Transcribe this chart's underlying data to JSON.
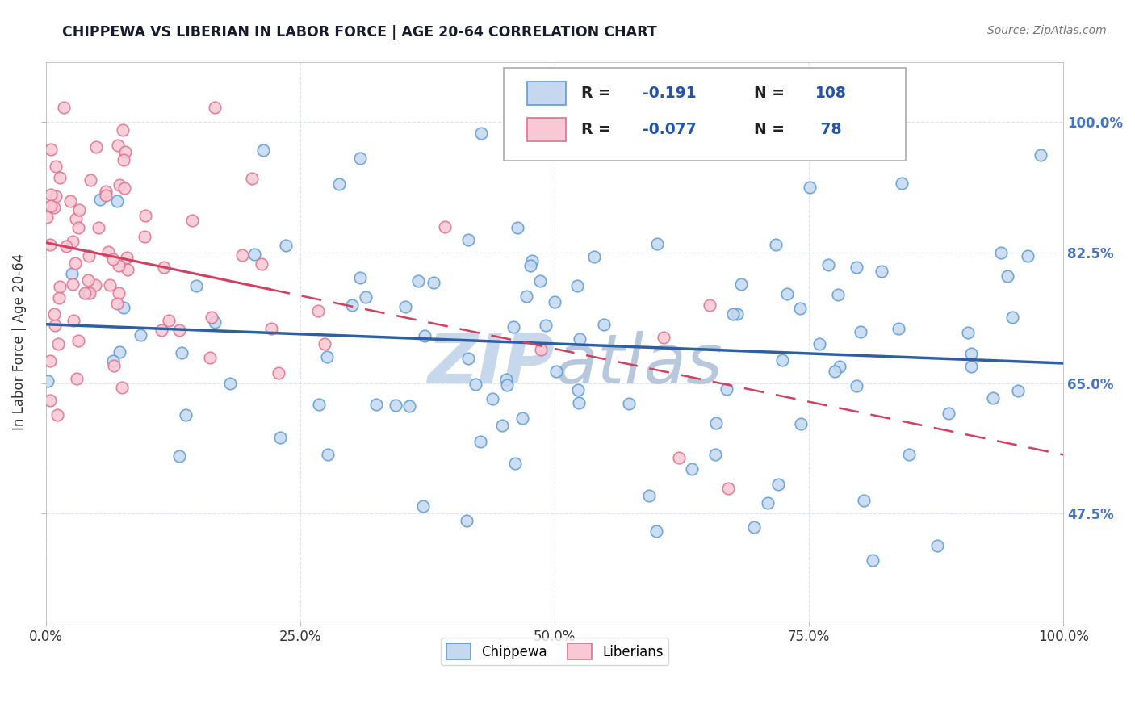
{
  "title": "CHIPPEWA VS LIBERIAN IN LABOR FORCE | AGE 20-64 CORRELATION CHART",
  "source_text": "Source: ZipAtlas.com",
  "ylabel": "In Labor Force | Age 20-64",
  "xmin": 0.0,
  "xmax": 1.0,
  "ymin": 0.33,
  "ymax": 1.08,
  "chippewa_color": "#c5d8f0",
  "chippewa_edge_color": "#5b9bd5",
  "liberian_color": "#f8c8d4",
  "liberian_edge_color": "#e07090",
  "trendline_chippewa": "#2e5fa3",
  "trendline_liberian": "#d04060",
  "watermark_color": "#c8d8ec",
  "legend_title_color": "#2255aa",
  "R_chippewa": -0.191,
  "N_chippewa": 108,
  "R_liberian": -0.077,
  "N_liberian": 78,
  "ytick_labels": [
    "47.5%",
    "65.0%",
    "82.5%",
    "100.0%"
  ],
  "ytick_values": [
    0.475,
    0.65,
    0.825,
    1.0
  ],
  "xtick_labels": [
    "0.0%",
    "25.0%",
    "50.0%",
    "75.0%",
    "100.0%"
  ],
  "xtick_values": [
    0.0,
    0.25,
    0.5,
    0.75,
    1.0
  ],
  "legend_labels": [
    "Chippewa",
    "Liberians"
  ],
  "background_color": "#ffffff",
  "right_axis_color": "#4472c4"
}
